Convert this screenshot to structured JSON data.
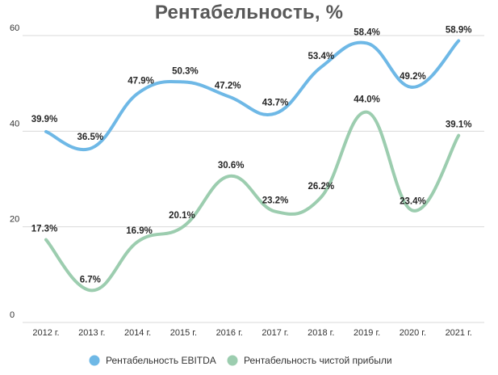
{
  "chart_data": {
    "type": "line",
    "title": "Рентабельность, %",
    "xlabel": "",
    "ylabel": "",
    "ylim": [
      0,
      60
    ],
    "yticks": [
      "0",
      "20",
      "40",
      "60"
    ],
    "categories": [
      "2012 г.",
      "2013 г.",
      "2014 г.",
      "2015 г.",
      "2016 г.",
      "2017 г.",
      "2018 г.",
      "2019 г.",
      "2020 г.",
      "2021 г."
    ],
    "series": [
      {
        "name": "Рентабельность EBITDA",
        "color": "#6EB8E6",
        "values": [
          39.9,
          36.5,
          47.9,
          50.3,
          47.2,
          43.7,
          53.4,
          58.4,
          49.2,
          58.9
        ],
        "labels": [
          "39.9%",
          "36.5%",
          "47.9%",
          "50.3%",
          "47.2%",
          "43.7%",
          "53.4%",
          "58.4%",
          "49.2%",
          "58.9%"
        ]
      },
      {
        "name": "Рентабельность чистой прибыли",
        "color": "#9CCDAF",
        "values": [
          17.3,
          6.7,
          16.9,
          20.1,
          30.6,
          23.2,
          26.2,
          44.0,
          23.4,
          39.1
        ],
        "labels": [
          "17.3%",
          "6.7%",
          "16.9%",
          "20.1%",
          "30.6%",
          "23.2%",
          "26.2%",
          "44.0%",
          "23.4%",
          "39.1%"
        ]
      }
    ],
    "grid": true,
    "legend": "bottom"
  }
}
